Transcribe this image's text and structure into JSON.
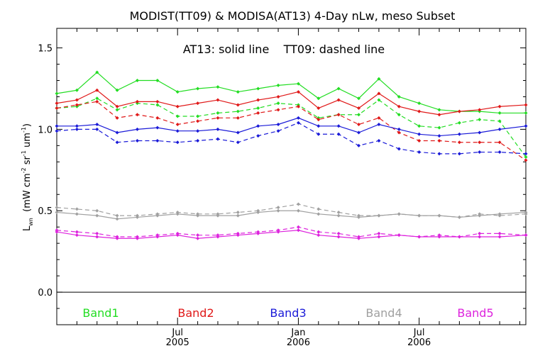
{
  "chart_data": {
    "type": "line",
    "title": "MODIST(TT09) & MODISA(AT13) 4-Day nLw, meso Subset",
    "annotation": "AT13: solid line    TT09: dashed line",
    "ylabel_main": "L",
    "ylabel_sub": "wn",
    "ylabel_rest": "(mW cm",
    "ylabel_sup1": "-2",
    "ylabel_sr": " sr",
    "ylabel_sup2": "-1",
    "ylabel_um": " um",
    "ylabel_sup3": "-1",
    "ylabel_close": ")",
    "ylim": [
      -0.2,
      1.62
    ],
    "yticks": [
      "0.0",
      "0.5",
      "1.0",
      "1.5"
    ],
    "ytick_values": [
      0.0,
      0.5,
      1.0,
      1.5
    ],
    "xlim": [
      0,
      23.3
    ],
    "xticks": [
      {
        "month": "Jul",
        "year": "2005",
        "x": 6
      },
      {
        "month": "Jan",
        "year": "2006",
        "x": 12
      },
      {
        "month": "Jul",
        "year": "2006",
        "x": 18
      }
    ],
    "x": [
      0,
      1,
      2,
      3,
      4,
      5,
      6,
      7,
      8,
      9,
      10,
      11,
      12,
      13,
      14,
      15,
      16,
      17,
      18,
      19,
      20,
      21,
      22,
      23.3
    ],
    "grid": false,
    "series": [
      {
        "name": "Band1",
        "color": "#22dd22",
        "solid": [
          1.22,
          1.24,
          1.35,
          1.24,
          1.3,
          1.3,
          1.23,
          1.25,
          1.26,
          1.23,
          1.25,
          1.27,
          1.28,
          1.19,
          1.25,
          1.19,
          1.31,
          1.2,
          1.16,
          1.12,
          1.11,
          1.11,
          1.1,
          1.1
        ],
        "dashed": [
          1.13,
          1.14,
          1.19,
          1.12,
          1.16,
          1.15,
          1.08,
          1.08,
          1.1,
          1.11,
          1.13,
          1.16,
          1.15,
          1.07,
          1.09,
          1.09,
          1.18,
          1.09,
          1.02,
          1.01,
          1.04,
          1.06,
          1.05,
          0.83
        ]
      },
      {
        "name": "Band2",
        "color": "#e01818",
        "solid": [
          1.16,
          1.18,
          1.24,
          1.14,
          1.17,
          1.17,
          1.14,
          1.16,
          1.18,
          1.15,
          1.18,
          1.2,
          1.23,
          1.13,
          1.18,
          1.13,
          1.22,
          1.14,
          1.11,
          1.09,
          1.11,
          1.12,
          1.14,
          1.15
        ],
        "dashed": [
          1.13,
          1.15,
          1.17,
          1.07,
          1.09,
          1.07,
          1.03,
          1.05,
          1.07,
          1.07,
          1.1,
          1.12,
          1.14,
          1.06,
          1.09,
          1.03,
          1.07,
          0.98,
          0.93,
          0.93,
          0.92,
          0.92,
          0.92,
          0.81
        ]
      },
      {
        "name": "Band3",
        "color": "#1a1ad8",
        "solid": [
          1.02,
          1.02,
          1.03,
          0.98,
          1.0,
          1.01,
          0.99,
          0.99,
          1.0,
          0.98,
          1.02,
          1.03,
          1.07,
          1.02,
          1.02,
          0.98,
          1.03,
          1.0,
          0.97,
          0.96,
          0.97,
          0.98,
          1.0,
          1.02
        ],
        "dashed": [
          0.99,
          1.0,
          1.0,
          0.92,
          0.93,
          0.93,
          0.92,
          0.93,
          0.94,
          0.92,
          0.96,
          0.99,
          1.04,
          0.97,
          0.97,
          0.9,
          0.93,
          0.88,
          0.86,
          0.85,
          0.85,
          0.86,
          0.86,
          0.85
        ]
      },
      {
        "name": "Band4",
        "color": "#a0a0a0",
        "solid": [
          0.49,
          0.48,
          0.47,
          0.45,
          0.46,
          0.47,
          0.48,
          0.47,
          0.47,
          0.47,
          0.49,
          0.5,
          0.5,
          0.48,
          0.47,
          0.46,
          0.47,
          0.48,
          0.47,
          0.47,
          0.46,
          0.47,
          0.48,
          0.49
        ],
        "dashed": [
          0.52,
          0.51,
          0.5,
          0.47,
          0.47,
          0.48,
          0.49,
          0.48,
          0.48,
          0.49,
          0.5,
          0.52,
          0.54,
          0.51,
          0.49,
          0.47,
          0.47,
          0.48,
          0.47,
          0.47,
          0.46,
          0.48,
          0.47,
          0.48
        ]
      },
      {
        "name": "Band5",
        "color": "#dd22dd",
        "solid": [
          0.37,
          0.35,
          0.34,
          0.33,
          0.33,
          0.34,
          0.35,
          0.33,
          0.34,
          0.35,
          0.36,
          0.37,
          0.38,
          0.35,
          0.34,
          0.33,
          0.34,
          0.35,
          0.34,
          0.34,
          0.34,
          0.34,
          0.34,
          0.35
        ],
        "dashed": [
          0.38,
          0.37,
          0.36,
          0.34,
          0.34,
          0.35,
          0.36,
          0.35,
          0.35,
          0.36,
          0.37,
          0.38,
          0.4,
          0.37,
          0.36,
          0.34,
          0.36,
          0.35,
          0.34,
          0.35,
          0.34,
          0.36,
          0.36,
          0.35
        ]
      }
    ]
  }
}
